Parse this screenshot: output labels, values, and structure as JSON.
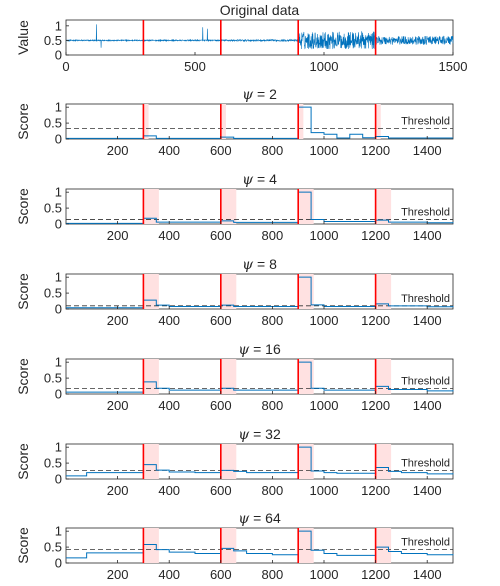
{
  "colors": {
    "series": "#0072BD",
    "changepoint": "#FF0000",
    "window": "#FFE1E1",
    "threshold": "#333333"
  },
  "chart_data": [
    {
      "type": "line",
      "title": "Original data",
      "title_symbol": "",
      "title_value": "",
      "ylabel": "Value",
      "xlim": [
        0,
        1500
      ],
      "ylim": [
        0,
        1.2
      ],
      "xticks": [
        0,
        500,
        1000,
        1500
      ],
      "xtick_labels": [
        "0",
        "500",
        "1000",
        "1500"
      ],
      "yticks": [
        0,
        0.5,
        1
      ],
      "ytick_labels": [
        "0",
        "0.5",
        "1"
      ],
      "changepoints": [
        300,
        600,
        900,
        1200
      ],
      "noise_segments": [
        {
          "start": 0,
          "end": 300,
          "level": 0.5,
          "amplitude": 0.02
        },
        {
          "start": 300,
          "end": 600,
          "level": 0.5,
          "amplitude": 0.02
        },
        {
          "start": 600,
          "end": 900,
          "level": 0.5,
          "amplitude": 0.03
        },
        {
          "start": 900,
          "end": 1200,
          "level": 0.5,
          "amplitude": 0.3
        },
        {
          "start": 1200,
          "end": 1500,
          "level": 0.5,
          "amplitude": 0.15
        }
      ],
      "spikes": [
        {
          "x": 118,
          "y": 1.05
        },
        {
          "x": 136,
          "y": 0.25
        },
        {
          "x": 530,
          "y": 0.95
        },
        {
          "x": 548,
          "y": 0.9
        }
      ]
    },
    {
      "type": "line",
      "title": "",
      "title_symbol": "ψ",
      "title_value": "= 2",
      "ylabel": "Score",
      "xlim": [
        0,
        1500
      ],
      "ylim": [
        0,
        1.1
      ],
      "xticks": [
        200,
        400,
        600,
        800,
        1000,
        1200,
        1400
      ],
      "xtick_labels": [
        "200",
        "400",
        "600",
        "800",
        "1000",
        "1200",
        "1400"
      ],
      "yticks": [
        0,
        0.5,
        1
      ],
      "ytick_labels": [
        "0",
        "0.5",
        "1"
      ],
      "threshold": 0.33,
      "threshold_label": "Threshold",
      "changepoints": [
        300,
        600,
        900,
        1200
      ],
      "windows": [
        [
          300,
          320
        ],
        [
          600,
          620
        ],
        [
          900,
          920
        ],
        [
          1200,
          1220
        ]
      ],
      "x": [
        0,
        300,
        350,
        600,
        650,
        900,
        950,
        1000,
        1050,
        1100,
        1150,
        1200,
        1250,
        1500
      ],
      "y": [
        0.02,
        0.1,
        0.02,
        0.06,
        0.02,
        1.0,
        0.2,
        0.15,
        0.03,
        0.15,
        0.04,
        0.08,
        0.03,
        0.03
      ]
    },
    {
      "type": "line",
      "title": "",
      "title_symbol": "ψ",
      "title_value": "= 4",
      "ylabel": "Score",
      "xlim": [
        0,
        1500
      ],
      "ylim": [
        0,
        1.1
      ],
      "xticks": [
        200,
        400,
        600,
        800,
        1000,
        1200,
        1400
      ],
      "xtick_labels": [
        "200",
        "400",
        "600",
        "800",
        "1000",
        "1200",
        "1400"
      ],
      "yticks": [
        0,
        0.5,
        1
      ],
      "ytick_labels": [
        "0",
        "0.5",
        "1"
      ],
      "threshold": 0.14,
      "threshold_label": "Threshold",
      "changepoints": [
        300,
        600,
        900,
        1200
      ],
      "windows": [
        [
          300,
          360
        ],
        [
          600,
          660
        ],
        [
          900,
          960
        ],
        [
          1200,
          1260
        ]
      ],
      "x": [
        0,
        300,
        350,
        600,
        650,
        900,
        950,
        1000,
        1200,
        1250,
        1400,
        1500
      ],
      "y": [
        0.02,
        0.18,
        0.06,
        0.1,
        0.05,
        1.0,
        0.14,
        0.08,
        0.12,
        0.06,
        0.04,
        0.06
      ]
    },
    {
      "type": "line",
      "title": "",
      "title_symbol": "ψ",
      "title_value": "= 8",
      "ylabel": "Score",
      "xlim": [
        0,
        1500
      ],
      "ylim": [
        0,
        1.1
      ],
      "xticks": [
        200,
        400,
        600,
        800,
        1000,
        1200,
        1400
      ],
      "xtick_labels": [
        "200",
        "400",
        "600",
        "800",
        "1000",
        "1200",
        "1400"
      ],
      "yticks": [
        0,
        0.5,
        1
      ],
      "ytick_labels": [
        "0",
        "0.5",
        "1"
      ],
      "threshold": 0.1,
      "threshold_label": "Threshold",
      "changepoints": [
        300,
        600,
        900,
        1200
      ],
      "windows": [
        [
          300,
          360
        ],
        [
          600,
          660
        ],
        [
          900,
          960
        ],
        [
          1200,
          1260
        ]
      ],
      "x": [
        0,
        300,
        350,
        400,
        600,
        650,
        900,
        950,
        1000,
        1200,
        1250,
        1400,
        1500
      ],
      "y": [
        0.04,
        0.28,
        0.12,
        0.08,
        0.12,
        0.08,
        1.0,
        0.13,
        0.08,
        0.16,
        0.1,
        0.07,
        0.09
      ]
    },
    {
      "type": "line",
      "title": "",
      "title_symbol": "ψ",
      "title_value": "= 16",
      "ylabel": "Score",
      "xlim": [
        0,
        1500
      ],
      "ylim": [
        0,
        1.1
      ],
      "xticks": [
        200,
        400,
        600,
        800,
        1000,
        1200,
        1400
      ],
      "xtick_labels": [
        "200",
        "400",
        "600",
        "800",
        "1000",
        "1200",
        "1400"
      ],
      "yticks": [
        0,
        0.5,
        1
      ],
      "ytick_labels": [
        "0",
        "0.5",
        "1"
      ],
      "threshold": 0.17,
      "threshold_label": "Threshold",
      "changepoints": [
        300,
        600,
        900,
        1200
      ],
      "windows": [
        [
          300,
          360
        ],
        [
          600,
          660
        ],
        [
          900,
          960
        ],
        [
          1200,
          1260
        ]
      ],
      "x": [
        0,
        300,
        350,
        400,
        600,
        650,
        900,
        950,
        1000,
        1200,
        1250,
        1400,
        1500
      ],
      "y": [
        0.06,
        0.38,
        0.18,
        0.12,
        0.18,
        0.12,
        1.0,
        0.18,
        0.12,
        0.24,
        0.14,
        0.1,
        0.12
      ]
    },
    {
      "type": "line",
      "title": "",
      "title_symbol": "ψ",
      "title_value": "= 32",
      "ylabel": "Score",
      "xlim": [
        0,
        1500
      ],
      "ylim": [
        0,
        1.1
      ],
      "xticks": [
        200,
        400,
        600,
        800,
        1000,
        1200,
        1400
      ],
      "xtick_labels": [
        "200",
        "400",
        "600",
        "800",
        "1000",
        "1200",
        "1400"
      ],
      "yticks": [
        0,
        0.5,
        1
      ],
      "ytick_labels": [
        "0",
        "0.5",
        "1"
      ],
      "threshold": 0.27,
      "threshold_label": "Threshold",
      "changepoints": [
        300,
        600,
        900,
        1200
      ],
      "windows": [
        [
          300,
          360
        ],
        [
          600,
          660
        ],
        [
          900,
          960
        ],
        [
          1200,
          1260
        ]
      ],
      "x": [
        0,
        80,
        300,
        350,
        400,
        500,
        600,
        650,
        700,
        900,
        950,
        1000,
        1050,
        1200,
        1250,
        1300,
        1400,
        1500
      ],
      "y": [
        0.1,
        0.2,
        0.45,
        0.28,
        0.22,
        0.2,
        0.27,
        0.24,
        0.2,
        1.0,
        0.25,
        0.2,
        0.18,
        0.36,
        0.24,
        0.2,
        0.16,
        0.18
      ]
    },
    {
      "type": "line",
      "title": "",
      "title_symbol": "ψ",
      "title_value": "= 64",
      "ylabel": "Score",
      "xlim": [
        0,
        1500
      ],
      "ylim": [
        0,
        1.1
      ],
      "xticks": [
        200,
        400,
        600,
        800,
        1000,
        1200,
        1400
      ],
      "xtick_labels": [
        "200",
        "400",
        "600",
        "800",
        "1000",
        "1200",
        "1400"
      ],
      "yticks": [
        0,
        0.5,
        1
      ],
      "ytick_labels": [
        "0",
        "0.5",
        "1"
      ],
      "threshold": 0.42,
      "threshold_label": "Threshold",
      "changepoints": [
        300,
        600,
        900,
        1200
      ],
      "windows": [
        [
          300,
          360
        ],
        [
          600,
          660
        ],
        [
          900,
          960
        ],
        [
          1200,
          1260
        ]
      ],
      "x": [
        0,
        80,
        300,
        350,
        400,
        500,
        600,
        650,
        700,
        800,
        900,
        950,
        1000,
        1050,
        1200,
        1250,
        1300,
        1400,
        1500
      ],
      "y": [
        0.16,
        0.32,
        0.58,
        0.42,
        0.34,
        0.3,
        0.46,
        0.38,
        0.3,
        0.26,
        1.0,
        0.4,
        0.3,
        0.24,
        0.5,
        0.36,
        0.3,
        0.26,
        0.28
      ]
    }
  ]
}
